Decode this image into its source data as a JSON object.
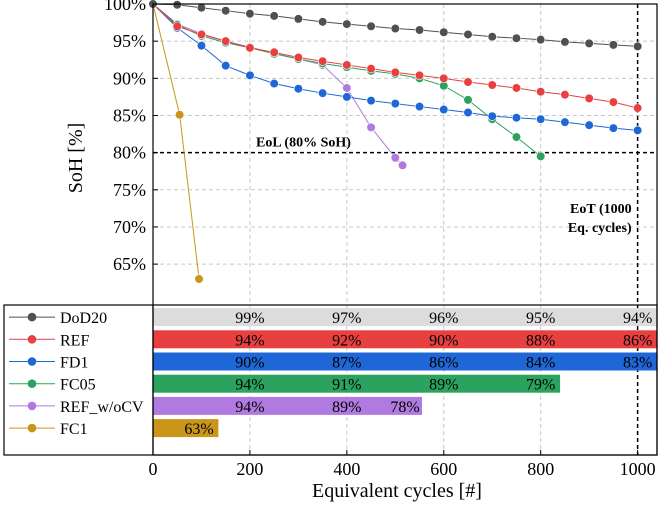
{
  "chart_data": {
    "type": "line",
    "xlabel": "Equivalent cycles [#]",
    "ylabel": "SoH [%]",
    "xlim": [
      0,
      1040
    ],
    "ylim": [
      59.5,
      100
    ],
    "grid": true,
    "xticks": [
      0,
      200,
      400,
      600,
      800,
      1000
    ],
    "xtick_labels": [
      "0",
      "200",
      "400",
      "600",
      "800",
      "1000"
    ],
    "yticks": [
      65,
      70,
      75,
      80,
      85,
      90,
      95,
      100
    ],
    "ytick_labels": [
      "65%",
      "70%",
      "75%",
      "80%",
      "85%",
      "90%",
      "95%",
      "100%"
    ],
    "legend_position": "bottom-left",
    "series": [
      {
        "name": "DoD20",
        "color": "#505050",
        "x": [
          0,
          50,
          100,
          150,
          200,
          250,
          300,
          350,
          400,
          450,
          500,
          550,
          600,
          650,
          700,
          750,
          800,
          850,
          900,
          950,
          1000
        ],
        "y": [
          100,
          99.9,
          99.5,
          99.1,
          98.7,
          98.4,
          98.0,
          97.6,
          97.3,
          97.0,
          96.7,
          96.5,
          96.2,
          95.9,
          95.6,
          95.4,
          95.2,
          94.9,
          94.7,
          94.5,
          94.3
        ]
      },
      {
        "name": "REF",
        "color": "#e84040",
        "x": [
          0,
          50,
          100,
          150,
          200,
          250,
          300,
          350,
          400,
          450,
          500,
          550,
          600,
          650,
          700,
          750,
          800,
          850,
          900,
          950,
          1000
        ],
        "y": [
          100,
          97.0,
          95.9,
          95.0,
          94.1,
          93.5,
          92.8,
          92.3,
          91.8,
          91.3,
          90.8,
          90.4,
          90.0,
          89.5,
          89.1,
          88.7,
          88.2,
          87.8,
          87.3,
          86.8,
          86.0
        ]
      },
      {
        "name": "FD1",
        "color": "#1f66d6",
        "x": [
          0,
          50,
          100,
          150,
          200,
          250,
          300,
          350,
          400,
          450,
          500,
          550,
          600,
          650,
          700,
          750,
          800,
          850,
          900,
          950,
          1000
        ],
        "y": [
          100,
          96.8,
          94.4,
          91.7,
          90.4,
          89.3,
          88.6,
          88.0,
          87.5,
          87.0,
          86.6,
          86.2,
          85.8,
          85.4,
          84.9,
          84.7,
          84.5,
          84.1,
          83.7,
          83.3,
          83.0
        ]
      },
      {
        "name": "FC05",
        "color": "#2ca25f",
        "x": [
          0,
          50,
          100,
          150,
          200,
          250,
          300,
          350,
          400,
          450,
          500,
          550,
          600,
          650,
          700,
          750,
          800
        ],
        "y": [
          100,
          97.2,
          95.7,
          94.8,
          94.1,
          93.3,
          92.6,
          92.0,
          91.5,
          91.0,
          90.6,
          90.0,
          89.0,
          87.1,
          84.5,
          82.1,
          79.5
        ]
      },
      {
        "name": "REF_w/oCV",
        "color": "#b07ae0",
        "x": [
          0,
          50,
          100,
          150,
          200,
          250,
          300,
          350,
          400,
          450,
          500,
          515
        ],
        "y": [
          100,
          97.3,
          96.0,
          95.0,
          94.2,
          93.4,
          92.6,
          91.8,
          88.7,
          83.4,
          79.3,
          78.3
        ]
      },
      {
        "name": "FC1",
        "color": "#c9961a",
        "x": [
          0,
          55,
          95
        ],
        "y": [
          100,
          85.1,
          63.0
        ]
      }
    ],
    "reference_lines": [
      {
        "axis": "y",
        "value": 80,
        "label": "EoL (80% SoH)"
      },
      {
        "axis": "x",
        "value": 1000,
        "label": "EoT (1000 Eq. cycles)"
      }
    ],
    "bar_panel": [
      {
        "series": "DoD20",
        "color": "#dcdcdc",
        "end": 1040,
        "labels": [
          {
            "x": 200,
            "text": "99%"
          },
          {
            "x": 400,
            "text": "97%"
          },
          {
            "x": 600,
            "text": "96%"
          },
          {
            "x": 800,
            "text": "95%"
          },
          {
            "x": 1000,
            "text": "94%"
          }
        ]
      },
      {
        "series": "REF",
        "color": "#e84040",
        "end": 1040,
        "labels": [
          {
            "x": 200,
            "text": "94%"
          },
          {
            "x": 400,
            "text": "92%"
          },
          {
            "x": 600,
            "text": "90%"
          },
          {
            "x": 800,
            "text": "88%"
          },
          {
            "x": 1000,
            "text": "86%"
          }
        ]
      },
      {
        "series": "FD1",
        "color": "#1f66d6",
        "end": 1040,
        "labels": [
          {
            "x": 200,
            "text": "90%"
          },
          {
            "x": 400,
            "text": "87%"
          },
          {
            "x": 600,
            "text": "86%"
          },
          {
            "x": 800,
            "text": "84%"
          },
          {
            "x": 1000,
            "text": "83%"
          }
        ]
      },
      {
        "series": "FC05",
        "color": "#2ca25f",
        "end": 840,
        "labels": [
          {
            "x": 200,
            "text": "94%"
          },
          {
            "x": 400,
            "text": "91%"
          },
          {
            "x": 600,
            "text": "89%"
          },
          {
            "x": 800,
            "text": "79%"
          }
        ]
      },
      {
        "series": "REF_w/oCV",
        "color": "#b07ae0",
        "end": 555,
        "labels": [
          {
            "x": 200,
            "text": "94%"
          },
          {
            "x": 400,
            "text": "89%"
          },
          {
            "x": 520,
            "text": "78%"
          }
        ]
      },
      {
        "series": "FC1",
        "color": "#c9961a",
        "end": 135,
        "labels": [
          {
            "x": 95,
            "text": "63%"
          }
        ]
      }
    ]
  }
}
